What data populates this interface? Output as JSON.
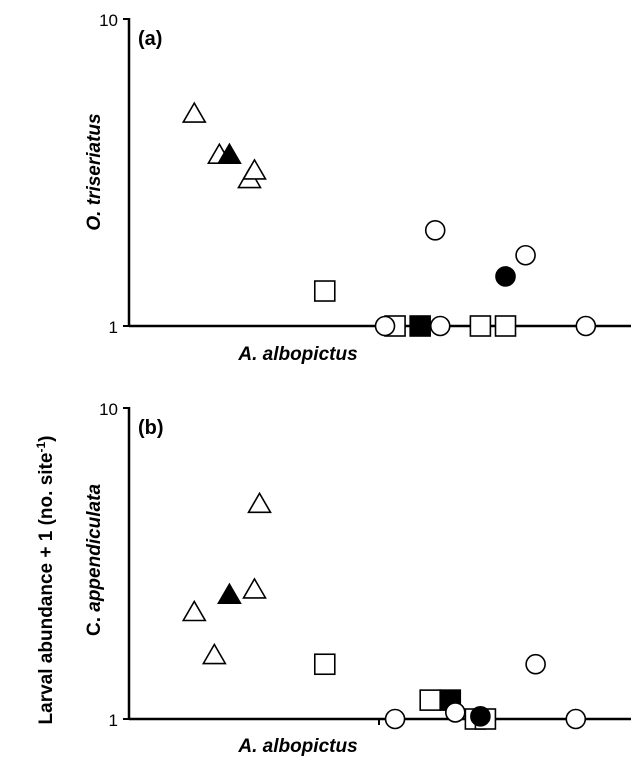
{
  "figure": {
    "shared_ylabel_main": "Larval abundance + 1 (no. site",
    "shared_ylabel_sup": "-1",
    "shared_ylabel_end": ")"
  },
  "chart_data": [
    {
      "type": "scatter",
      "panel_label": "(a)",
      "xlabel": "A. albopictus",
      "ylabel": "O. triseriatus",
      "y_scale": "log",
      "ylim": [
        1,
        10
      ],
      "xlim": [
        0,
        10
      ],
      "y_ticks": [
        "1",
        "10"
      ],
      "series": [
        {
          "marker": "triangle-open",
          "points": [
            [
              1.3,
              4.9
            ],
            [
              1.8,
              3.6
            ],
            [
              2.4,
              3.0
            ],
            [
              2.5,
              3.2
            ]
          ]
        },
        {
          "marker": "triangle-filled",
          "points": [
            [
              2.0,
              3.6
            ]
          ]
        },
        {
          "marker": "square-open",
          "points": [
            [
              3.9,
              1.3
            ],
            [
              5.3,
              1.0
            ],
            [
              7.0,
              1.0
            ],
            [
              7.5,
              1.0
            ]
          ]
        },
        {
          "marker": "square-filled",
          "points": [
            [
              5.8,
              1.0
            ]
          ]
        },
        {
          "marker": "circle-open",
          "points": [
            [
              5.1,
              1.0
            ],
            [
              6.1,
              2.05
            ],
            [
              6.2,
              1.0
            ],
            [
              7.9,
              1.7
            ],
            [
              9.1,
              1.0
            ]
          ]
        },
        {
          "marker": "circle-filled",
          "points": [
            [
              7.5,
              1.45
            ]
          ]
        }
      ]
    },
    {
      "type": "scatter",
      "panel_label": "(b)",
      "xlabel": "A. albopictus",
      "ylabel_prefix": "C.",
      "ylabel": " appendiculata",
      "y_scale": "log",
      "ylim": [
        1,
        10
      ],
      "xlim": [
        0,
        10
      ],
      "y_ticks": [
        "1",
        "10"
      ],
      "series": [
        {
          "marker": "triangle-open",
          "points": [
            [
              1.3,
              2.2
            ],
            [
              1.7,
              1.6
            ],
            [
              2.5,
              2.6
            ],
            [
              2.6,
              4.9
            ]
          ]
        },
        {
          "marker": "triangle-filled",
          "points": [
            [
              2.0,
              2.5
            ]
          ]
        },
        {
          "marker": "square-open",
          "points": [
            [
              3.9,
              1.5
            ],
            [
              6.0,
              1.15
            ],
            [
              6.9,
              1.0
            ],
            [
              7.1,
              1.0
            ]
          ]
        },
        {
          "marker": "square-filled",
          "points": [
            [
              6.4,
              1.15
            ]
          ]
        },
        {
          "marker": "circle-open",
          "points": [
            [
              5.3,
              1.0
            ],
            [
              6.5,
              1.05
            ],
            [
              8.1,
              1.5
            ],
            [
              8.9,
              1.0
            ]
          ]
        },
        {
          "marker": "circle-filled",
          "points": [
            [
              7.0,
              1.02
            ]
          ]
        }
      ]
    }
  ]
}
